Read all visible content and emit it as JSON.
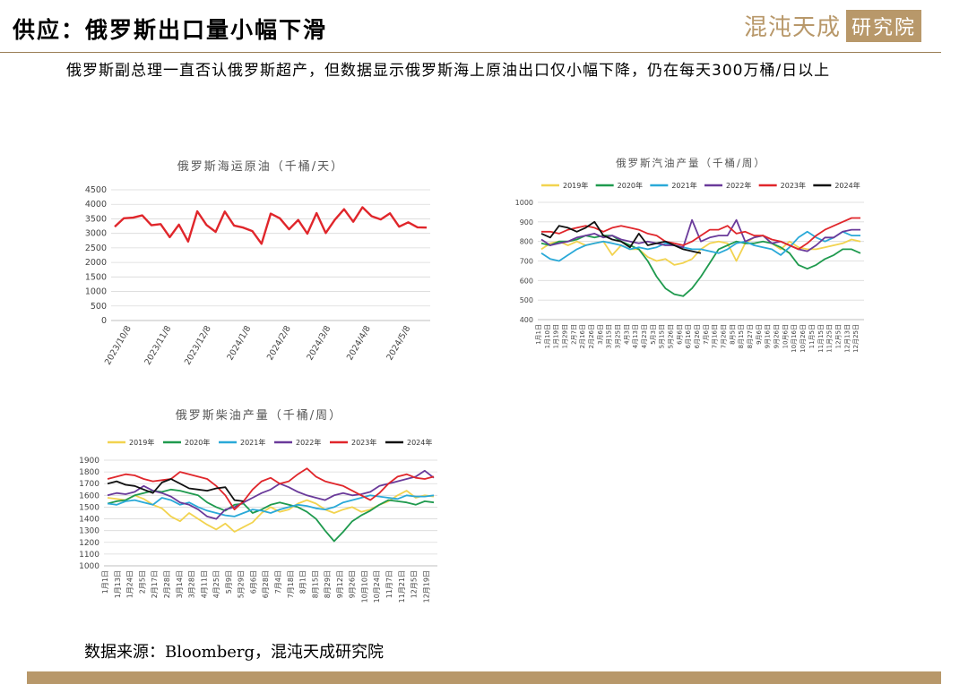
{
  "header": {
    "title": "供应：俄罗斯出口量小幅下滑",
    "logo_text": "混沌天成",
    "logo_box_text": "研究院"
  },
  "subtitle": "俄罗斯副总理一直否认俄罗斯超产，但数据显示俄罗斯海上原油出口仅小幅下降，仍在每天300万桶/日以上",
  "source": "数据来源：Bloomberg，混沌天成研究院",
  "colors": {
    "accent": "#b8986a",
    "rule": "#9a7f56"
  },
  "chart_data": [
    {
      "type": "line",
      "title": "俄罗斯海运原油（千桶/天）",
      "xlabel": "",
      "ylabel": "",
      "ylim": [
        0,
        4500
      ],
      "yticks": [
        0,
        500,
        1000,
        1500,
        2000,
        2500,
        3000,
        3500,
        4000,
        4500
      ],
      "grid": true,
      "legend": "none",
      "xticklabels": [
        "2023/10/8",
        "2023/11/8",
        "2023/12/8",
        "2024/1/8",
        "2024/2/8",
        "2024/3/8",
        "2024/4/8",
        "2024/5/8"
      ],
      "series": [
        {
          "color": "#e0262b",
          "values": [
            3230,
            3520,
            3540,
            3620,
            3280,
            3320,
            2870,
            3300,
            2720,
            3760,
            3290,
            3050,
            3750,
            3270,
            3200,
            3080,
            2640,
            3680,
            3520,
            3140,
            3460,
            2990,
            3700,
            3010,
            3470,
            3830,
            3400,
            3900,
            3590,
            3480,
            3690,
            3230,
            3380,
            3210,
            3200
          ]
        }
      ]
    },
    {
      "type": "line",
      "title": "俄罗斯汽油产量（千桶/周）",
      "ylim": [
        400,
        1000
      ],
      "yticks": [
        400,
        500,
        600,
        700,
        800,
        900,
        1000
      ],
      "grid": true,
      "legend": "top",
      "xticklabels": [
        "1月1日",
        "1月10日",
        "1月19日",
        "1月29日",
        "2月7日",
        "2月16日",
        "2月26日",
        "3月6日",
        "3月15日",
        "3月25日",
        "4月3日",
        "4月13日",
        "4月23日",
        "5月3日",
        "5月15日",
        "5月26日",
        "6月6日",
        "6月16日",
        "6月26日",
        "7月6日",
        "7月16日",
        "7月26日",
        "8月5日",
        "8月15日",
        "8月27日",
        "9月6日",
        "9月16日",
        "9月26日",
        "10月6日",
        "10月16日",
        "10月26日",
        "11月5日",
        "11月15日",
        "11月25日",
        "12月5日",
        "12月13日",
        "12月25日"
      ],
      "series": [
        {
          "name": "2019年",
          "color": "#f2d34f",
          "values": [
            760,
            790,
            800,
            780,
            800,
            780,
            790,
            800,
            730,
            780,
            760,
            760,
            720,
            700,
            710,
            680,
            690,
            710,
            760,
            790,
            800,
            790,
            700,
            790,
            820,
            830,
            790,
            760,
            800,
            770,
            760,
            760,
            770,
            780,
            790,
            810,
            800
          ]
        },
        {
          "name": "2020年",
          "color": "#1f9a4e",
          "values": [
            790,
            780,
            800,
            800,
            810,
            830,
            820,
            830,
            830,
            800,
            780,
            760,
            700,
            620,
            560,
            530,
            520,
            560,
            620,
            690,
            760,
            780,
            800,
            790,
            790,
            800,
            790,
            770,
            740,
            680,
            660,
            680,
            710,
            730,
            760,
            760,
            740
          ]
        },
        {
          "name": "2021年",
          "color": "#2aa9d8",
          "values": [
            740,
            710,
            700,
            730,
            760,
            780,
            790,
            800,
            790,
            780,
            760,
            770,
            760,
            770,
            790,
            780,
            770,
            760,
            760,
            750,
            740,
            760,
            790,
            800,
            780,
            770,
            760,
            730,
            770,
            820,
            850,
            820,
            800,
            820,
            850,
            830,
            830
          ]
        },
        {
          "name": "2022年",
          "color": "#6a3a9a",
          "values": [
            810,
            780,
            790,
            800,
            820,
            830,
            840,
            820,
            830,
            810,
            800,
            790,
            800,
            790,
            780,
            780,
            770,
            910,
            800,
            820,
            830,
            830,
            910,
            800,
            820,
            830,
            790,
            800,
            780,
            760,
            750,
            780,
            820,
            820,
            850,
            860,
            860
          ]
        },
        {
          "name": "2023年",
          "color": "#e0262b",
          "values": [
            850,
            850,
            840,
            860,
            870,
            880,
            870,
            850,
            870,
            880,
            870,
            860,
            840,
            830,
            800,
            790,
            780,
            800,
            830,
            860,
            860,
            880,
            840,
            850,
            830,
            830,
            810,
            800,
            780,
            760,
            790,
            830,
            860,
            880,
            900,
            920,
            920
          ]
        },
        {
          "name": "2024年",
          "color": "#111111",
          "values": [
            840,
            820,
            880,
            870,
            850,
            870,
            900,
            830,
            810,
            800,
            770,
            840,
            780,
            790,
            800,
            780,
            760,
            750,
            740
          ]
        }
      ]
    },
    {
      "type": "line",
      "title": "俄罗斯柴油产量（千桶/周）",
      "ylim": [
        1000,
        1900
      ],
      "yticks": [
        1000,
        1100,
        1200,
        1300,
        1400,
        1500,
        1600,
        1700,
        1800,
        1900
      ],
      "grid": true,
      "legend": "top",
      "xticklabels": [
        "1月1日",
        "1月13日",
        "1月24日",
        "2月5日",
        "2月17日",
        "2月28日",
        "3月14日",
        "3月28日",
        "4月11日",
        "4月25日",
        "5月9日",
        "5月29日",
        "6月6日",
        "6月28日",
        "7月4日",
        "7月18日",
        "8月1日",
        "8月15日",
        "8月29日",
        "9月12日",
        "9月26日",
        "10月10日",
        "10月24日",
        "11月7日",
        "11月21日",
        "12月5日",
        "12月19日"
      ],
      "series": [
        {
          "name": "2019年",
          "color": "#f2d34f",
          "values": [
            1580,
            1570,
            1560,
            1600,
            1570,
            1520,
            1490,
            1420,
            1380,
            1450,
            1400,
            1350,
            1310,
            1360,
            1290,
            1330,
            1370,
            1450,
            1500,
            1460,
            1480,
            1530,
            1560,
            1530,
            1480,
            1450,
            1480,
            1500,
            1460,
            1480,
            1520,
            1550,
            1600,
            1640,
            1580,
            1600,
            1590
          ]
        },
        {
          "name": "2020年",
          "color": "#1f9a4e",
          "values": [
            1530,
            1550,
            1560,
            1600,
            1620,
            1640,
            1630,
            1650,
            1640,
            1620,
            1600,
            1540,
            1500,
            1470,
            1520,
            1530,
            1450,
            1480,
            1520,
            1540,
            1520,
            1500,
            1460,
            1400,
            1300,
            1210,
            1290,
            1380,
            1430,
            1470,
            1520,
            1560,
            1550,
            1540,
            1520,
            1550,
            1540
          ]
        },
        {
          "name": "2021年",
          "color": "#2aa9d8",
          "values": [
            1530,
            1520,
            1550,
            1560,
            1540,
            1520,
            1580,
            1560,
            1520,
            1540,
            1500,
            1470,
            1450,
            1430,
            1420,
            1450,
            1480,
            1470,
            1450,
            1480,
            1500,
            1520,
            1510,
            1490,
            1480,
            1500,
            1540,
            1560,
            1580,
            1600,
            1590,
            1580,
            1570,
            1600,
            1590,
            1590,
            1600
          ]
        },
        {
          "name": "2022年",
          "color": "#6a3a9a",
          "values": [
            1600,
            1620,
            1610,
            1630,
            1680,
            1640,
            1620,
            1590,
            1540,
            1520,
            1480,
            1420,
            1400,
            1480,
            1500,
            1540,
            1580,
            1620,
            1650,
            1700,
            1670,
            1630,
            1600,
            1580,
            1560,
            1600,
            1620,
            1600,
            1610,
            1630,
            1680,
            1700,
            1720,
            1740,
            1760,
            1810,
            1750
          ]
        },
        {
          "name": "2023年",
          "color": "#e0262b",
          "values": [
            1740,
            1760,
            1780,
            1770,
            1740,
            1720,
            1730,
            1740,
            1800,
            1780,
            1760,
            1740,
            1680,
            1600,
            1480,
            1550,
            1650,
            1720,
            1750,
            1700,
            1720,
            1780,
            1830,
            1760,
            1720,
            1700,
            1680,
            1640,
            1600,
            1560,
            1620,
            1700,
            1760,
            1780,
            1750,
            1740,
            1760
          ]
        },
        {
          "name": "2024年",
          "color": "#111111",
          "values": [
            1700,
            1720,
            1690,
            1680,
            1650,
            1620,
            1710,
            1740,
            1700,
            1660,
            1650,
            1640,
            1660,
            1670,
            1560,
            1550
          ]
        }
      ]
    }
  ]
}
